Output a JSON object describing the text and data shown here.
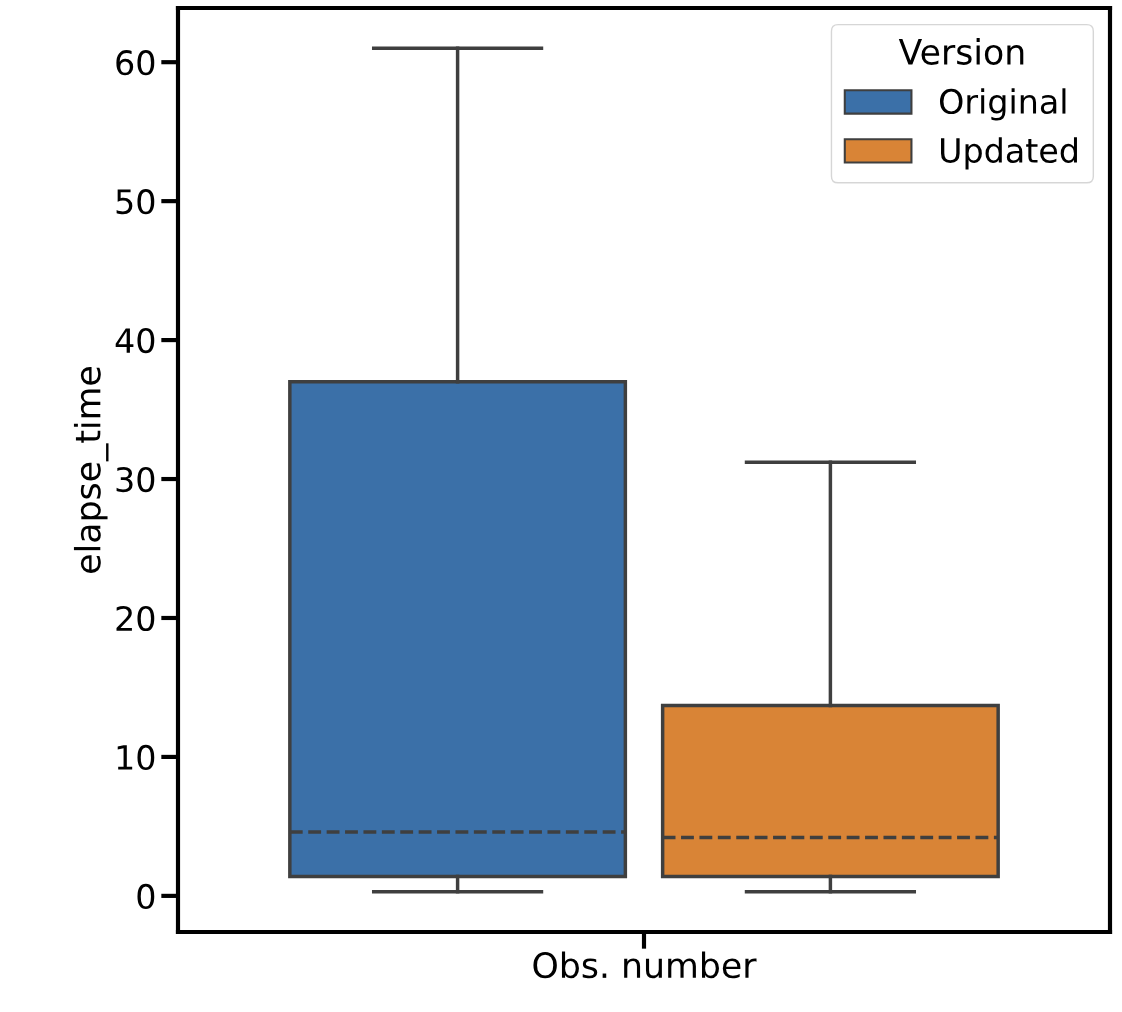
{
  "chart_data": {
    "type": "box",
    "categories": [
      "Obs. number"
    ],
    "ylabel": "elapse_time",
    "ylim": [
      -2.6,
      63.9
    ],
    "yticks": [
      0,
      10,
      20,
      30,
      40,
      50,
      60
    ],
    "legend": "top right",
    "legend_title": "Version",
    "series": [
      {
        "name": "Original",
        "color": "#3b70a8",
        "boxes": [
          {
            "low": 0.3,
            "q1": 1.4,
            "median": 4.6,
            "q3": 37,
            "high": 61
          }
        ]
      },
      {
        "name": "Updated",
        "color": "#d98436",
        "boxes": [
          {
            "low": 0.3,
            "q1": 1.4,
            "median": 4.2,
            "q3": 13.7,
            "high": 31.2
          }
        ]
      }
    ]
  }
}
